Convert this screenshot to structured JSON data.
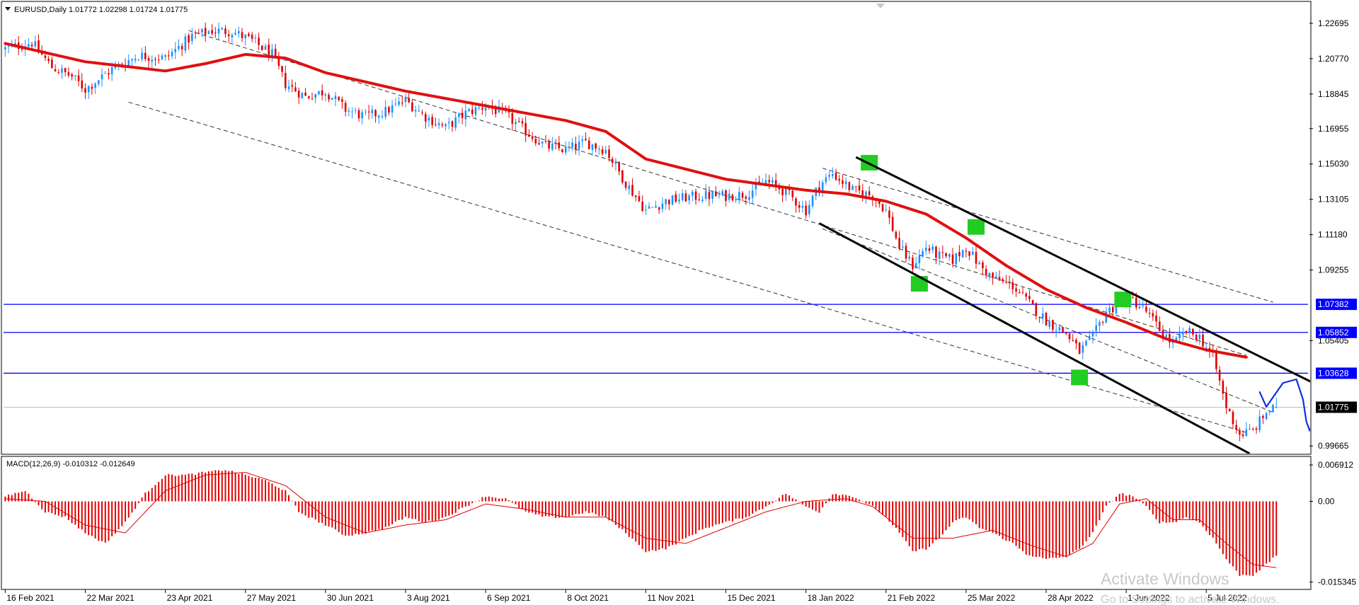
{
  "header": {
    "symbol_line": "EURUSD,Daily  1.01772 1.02298 1.01724 1.01775",
    "macd_line": "MACD(12,26,9) -0.010312 -0.012649"
  },
  "watermark": {
    "title": "Activate Windows",
    "subtitle": "Go to Settings to activate Windows."
  },
  "colors": {
    "bull": "#1e90ff",
    "bear": "#e00000",
    "ma": "#e01010",
    "hline": "#0000ff",
    "macd_hist": "#e00000",
    "signal": "#e00000",
    "channel": "#000000",
    "box": "#22cc22",
    "forecast": "#1030e0"
  },
  "chart_data": {
    "type": "candlestick",
    "symbol": "EURUSD",
    "timeframe": "Daily",
    "last": {
      "open": 1.01772,
      "high": 1.02298,
      "low": 1.01724,
      "close": 1.01775
    },
    "price_ticks": [
      "1.22695",
      "1.20770",
      "1.18845",
      "1.16955",
      "1.15030",
      "1.13105",
      "1.11180",
      "1.09255",
      "1.05405",
      "0.99665"
    ],
    "price_tick_values": [
      1.22695,
      1.2077,
      1.18845,
      1.16955,
      1.1503,
      1.13105,
      1.1118,
      1.09255,
      1.05405,
      0.99665
    ],
    "ylim": [
      0.9925,
      1.2385
    ],
    "date_ticks": [
      "16 Feb 2021",
      "22 Mar 2021",
      "23 Apr 2021",
      "27 May 2021",
      "30 Jun 2021",
      "3 Aug 2021",
      "6 Sep 2021",
      "8 Oct 2021",
      "11 Nov 2021",
      "15 Dec 2021",
      "18 Jan 2022",
      "21 Feb 2022",
      "25 Mar 2022",
      "28 Apr 2022",
      "1 Jun 2022",
      "5 Jul 2022"
    ],
    "bar_range": [
      0,
      390
    ],
    "date_tick_bars": [
      0,
      24,
      48,
      72,
      96,
      120,
      144,
      168,
      192,
      216,
      240,
      264,
      288,
      312,
      336,
      360
    ],
    "close_anchors": [
      [
        0,
        1.213
      ],
      [
        8,
        1.2165
      ],
      [
        14,
        1.203
      ],
      [
        20,
        1.198
      ],
      [
        24,
        1.191
      ],
      [
        32,
        1.202
      ],
      [
        40,
        1.2095
      ],
      [
        48,
        1.208
      ],
      [
        56,
        1.22
      ],
      [
        62,
        1.223
      ],
      [
        68,
        1.2225
      ],
      [
        74,
        1.2175
      ],
      [
        80,
        1.21
      ],
      [
        84,
        1.194
      ],
      [
        90,
        1.187
      ],
      [
        96,
        1.19
      ],
      [
        102,
        1.18
      ],
      [
        108,
        1.176
      ],
      [
        114,
        1.179
      ],
      [
        120,
        1.185
      ],
      [
        126,
        1.176
      ],
      [
        132,
        1.17
      ],
      [
        138,
        1.178
      ],
      [
        144,
        1.182
      ],
      [
        150,
        1.177
      ],
      [
        156,
        1.168
      ],
      [
        162,
        1.16
      ],
      [
        168,
        1.158
      ],
      [
        174,
        1.162
      ],
      [
        180,
        1.158
      ],
      [
        186,
        1.14
      ],
      [
        192,
        1.125
      ],
      [
        198,
        1.13
      ],
      [
        204,
        1.132
      ],
      [
        210,
        1.133
      ],
      [
        216,
        1.133
      ],
      [
        222,
        1.134
      ],
      [
        228,
        1.141
      ],
      [
        234,
        1.135
      ],
      [
        240,
        1.125
      ],
      [
        244,
        1.139
      ],
      [
        248,
        1.145
      ],
      [
        254,
        1.136
      ],
      [
        260,
        1.133
      ],
      [
        264,
        1.125
      ],
      [
        268,
        1.105
      ],
      [
        272,
        1.095
      ],
      [
        276,
        1.105
      ],
      [
        280,
        1.1
      ],
      [
        284,
        1.098
      ],
      [
        288,
        1.105
      ],
      [
        292,
        1.095
      ],
      [
        296,
        1.088
      ],
      [
        302,
        1.084
      ],
      [
        306,
        1.076
      ],
      [
        312,
        1.065
      ],
      [
        318,
        1.058
      ],
      [
        322,
        1.048
      ],
      [
        326,
        1.056
      ],
      [
        330,
        1.07
      ],
      [
        334,
        1.074
      ],
      [
        338,
        1.076
      ],
      [
        342,
        1.07
      ],
      [
        346,
        1.06
      ],
      [
        350,
        1.052
      ],
      [
        354,
        1.059
      ],
      [
        358,
        1.056
      ],
      [
        362,
        1.045
      ],
      [
        366,
        1.018
      ],
      [
        370,
        1.003
      ],
      [
        374,
        1.005
      ],
      [
        378,
        1.015
      ],
      [
        381,
        1.0178
      ]
    ],
    "moving_average": {
      "color": "#e01010",
      "points": [
        [
          0,
          1.216
        ],
        [
          24,
          1.206
        ],
        [
          48,
          1.201
        ],
        [
          60,
          1.205
        ],
        [
          72,
          1.21
        ],
        [
          84,
          1.208
        ],
        [
          96,
          1.2
        ],
        [
          120,
          1.19
        ],
        [
          144,
          1.182
        ],
        [
          168,
          1.174
        ],
        [
          180,
          1.168
        ],
        [
          192,
          1.153
        ],
        [
          216,
          1.142
        ],
        [
          240,
          1.136
        ],
        [
          252,
          1.134
        ],
        [
          264,
          1.13
        ],
        [
          276,
          1.123
        ],
        [
          288,
          1.11
        ],
        [
          300,
          1.095
        ],
        [
          312,
          1.082
        ],
        [
          324,
          1.072
        ],
        [
          336,
          1.064
        ],
        [
          348,
          1.055
        ],
        [
          360,
          1.049
        ],
        [
          372,
          1.045
        ]
      ]
    },
    "horizontal_lines": [
      {
        "label": "1.07382",
        "price": 1.07382
      },
      {
        "label": "1.05852",
        "price": 1.05852
      },
      {
        "label": "1.03628",
        "price": 1.03628
      }
    ],
    "current_price": {
      "label": "1.01775",
      "price": 1.01775
    },
    "dashed_channel": [
      {
        "from": [
          55,
          1.223
        ],
        "to": [
          372,
          1.046
        ]
      },
      {
        "from": [
          37,
          1.184
        ],
        "to": [
          372,
          1.004
        ]
      },
      {
        "from": [
          245,
          1.148
        ],
        "to": [
          380,
          1.075
        ]
      },
      {
        "from": [
          245,
          1.115
        ],
        "to": [
          380,
          1.015
        ]
      }
    ],
    "solid_channel": [
      {
        "from": [
          255,
          1.154
        ],
        "to": [
          435,
          0.9925
        ]
      },
      {
        "from": [
          244,
          1.118
        ],
        "to": [
          373,
          0.9925
        ]
      }
    ],
    "highlight_boxes": [
      [
        259,
        1.151
      ],
      [
        291,
        1.116
      ],
      [
        274,
        1.085
      ],
      [
        335,
        1.0765
      ],
      [
        322,
        1.034
      ]
    ],
    "forecast_path": [
      [
        376,
        1.026
      ],
      [
        378,
        1.018
      ],
      [
        383,
        1.031
      ],
      [
        387,
        1.033
      ],
      [
        389,
        1.022
      ],
      [
        390,
        1.01
      ],
      [
        391,
        1.005
      ],
      [
        394,
        1.018
      ],
      [
        397,
        1.012
      ],
      [
        402,
        0.993
      ]
    ],
    "macd": {
      "label": "MACD(12,26,9)",
      "main": -0.010312,
      "signal": -0.012649,
      "ticks": [
        "0.006912",
        "0.00",
        "-0.015345"
      ],
      "tick_values": [
        0.006912,
        0.0,
        -0.015345
      ],
      "ylim": [
        -0.0166,
        0.0084
      ],
      "hist_anchors": [
        [
          0,
          0.001
        ],
        [
          6,
          0.002
        ],
        [
          12,
          -0.002
        ],
        [
          18,
          -0.003
        ],
        [
          24,
          -0.006
        ],
        [
          30,
          -0.008
        ],
        [
          36,
          -0.004
        ],
        [
          42,
          0.0015
        ],
        [
          48,
          0.005
        ],
        [
          54,
          0.005
        ],
        [
          60,
          0.0055
        ],
        [
          66,
          0.006
        ],
        [
          72,
          0.005
        ],
        [
          78,
          0.004
        ],
        [
          84,
          0.002
        ],
        [
          88,
          -0.002
        ],
        [
          96,
          -0.0045
        ],
        [
          102,
          -0.0065
        ],
        [
          108,
          -0.006
        ],
        [
          114,
          -0.005
        ],
        [
          120,
          -0.003
        ],
        [
          126,
          -0.004
        ],
        [
          132,
          -0.003
        ],
        [
          138,
          -0.001
        ],
        [
          144,
          0.001
        ],
        [
          150,
          0.0005
        ],
        [
          156,
          -0.002
        ],
        [
          162,
          -0.003
        ],
        [
          168,
          -0.003
        ],
        [
          174,
          -0.002
        ],
        [
          180,
          -0.003
        ],
        [
          186,
          -0.006
        ],
        [
          192,
          -0.0095
        ],
        [
          198,
          -0.009
        ],
        [
          204,
          -0.007
        ],
        [
          210,
          -0.005
        ],
        [
          216,
          -0.004
        ],
        [
          222,
          -0.003
        ],
        [
          228,
          -0.001
        ],
        [
          234,
          0.0015
        ],
        [
          240,
          -0.001
        ],
        [
          244,
          -0.002
        ],
        [
          248,
          0.0015
        ],
        [
          254,
          0.001
        ],
        [
          260,
          -0.001
        ],
        [
          264,
          -0.003
        ],
        [
          268,
          -0.006
        ],
        [
          272,
          -0.0095
        ],
        [
          276,
          -0.009
        ],
        [
          280,
          -0.007
        ],
        [
          284,
          -0.004
        ],
        [
          288,
          -0.003
        ],
        [
          292,
          -0.005
        ],
        [
          296,
          -0.006
        ],
        [
          302,
          -0.008
        ],
        [
          306,
          -0.01
        ],
        [
          312,
          -0.011
        ],
        [
          318,
          -0.0105
        ],
        [
          322,
          -0.009
        ],
        [
          326,
          -0.006
        ],
        [
          330,
          -0.001
        ],
        [
          334,
          0.0015
        ],
        [
          338,
          0.001
        ],
        [
          342,
          -0.001
        ],
        [
          346,
          -0.004
        ],
        [
          350,
          -0.004
        ],
        [
          354,
          -0.003
        ],
        [
          358,
          -0.004
        ],
        [
          362,
          -0.007
        ],
        [
          366,
          -0.011
        ],
        [
          370,
          -0.014
        ],
        [
          374,
          -0.014
        ],
        [
          378,
          -0.012
        ],
        [
          381,
          -0.0103
        ]
      ],
      "signal_anchors": [
        [
          0,
          0.0005
        ],
        [
          12,
          0.0
        ],
        [
          24,
          -0.0045
        ],
        [
          36,
          -0.006
        ],
        [
          48,
          0.002
        ],
        [
          60,
          0.005
        ],
        [
          72,
          0.0055
        ],
        [
          84,
          0.003
        ],
        [
          96,
          -0.003
        ],
        [
          108,
          -0.006
        ],
        [
          120,
          -0.0045
        ],
        [
          132,
          -0.0035
        ],
        [
          144,
          -0.0005
        ],
        [
          156,
          -0.0015
        ],
        [
          168,
          -0.003
        ],
        [
          180,
          -0.003
        ],
        [
          192,
          -0.007
        ],
        [
          204,
          -0.008
        ],
        [
          216,
          -0.005
        ],
        [
          228,
          -0.002
        ],
        [
          240,
          0.0
        ],
        [
          252,
          0.0005
        ],
        [
          260,
          -0.001
        ],
        [
          272,
          -0.007
        ],
        [
          284,
          -0.007
        ],
        [
          296,
          -0.0055
        ],
        [
          308,
          -0.0085
        ],
        [
          318,
          -0.0105
        ],
        [
          326,
          -0.008
        ],
        [
          334,
          -0.0005
        ],
        [
          342,
          0.0005
        ],
        [
          350,
          -0.0035
        ],
        [
          358,
          -0.0035
        ],
        [
          366,
          -0.008
        ],
        [
          374,
          -0.012
        ],
        [
          381,
          -0.0126
        ]
      ]
    }
  }
}
